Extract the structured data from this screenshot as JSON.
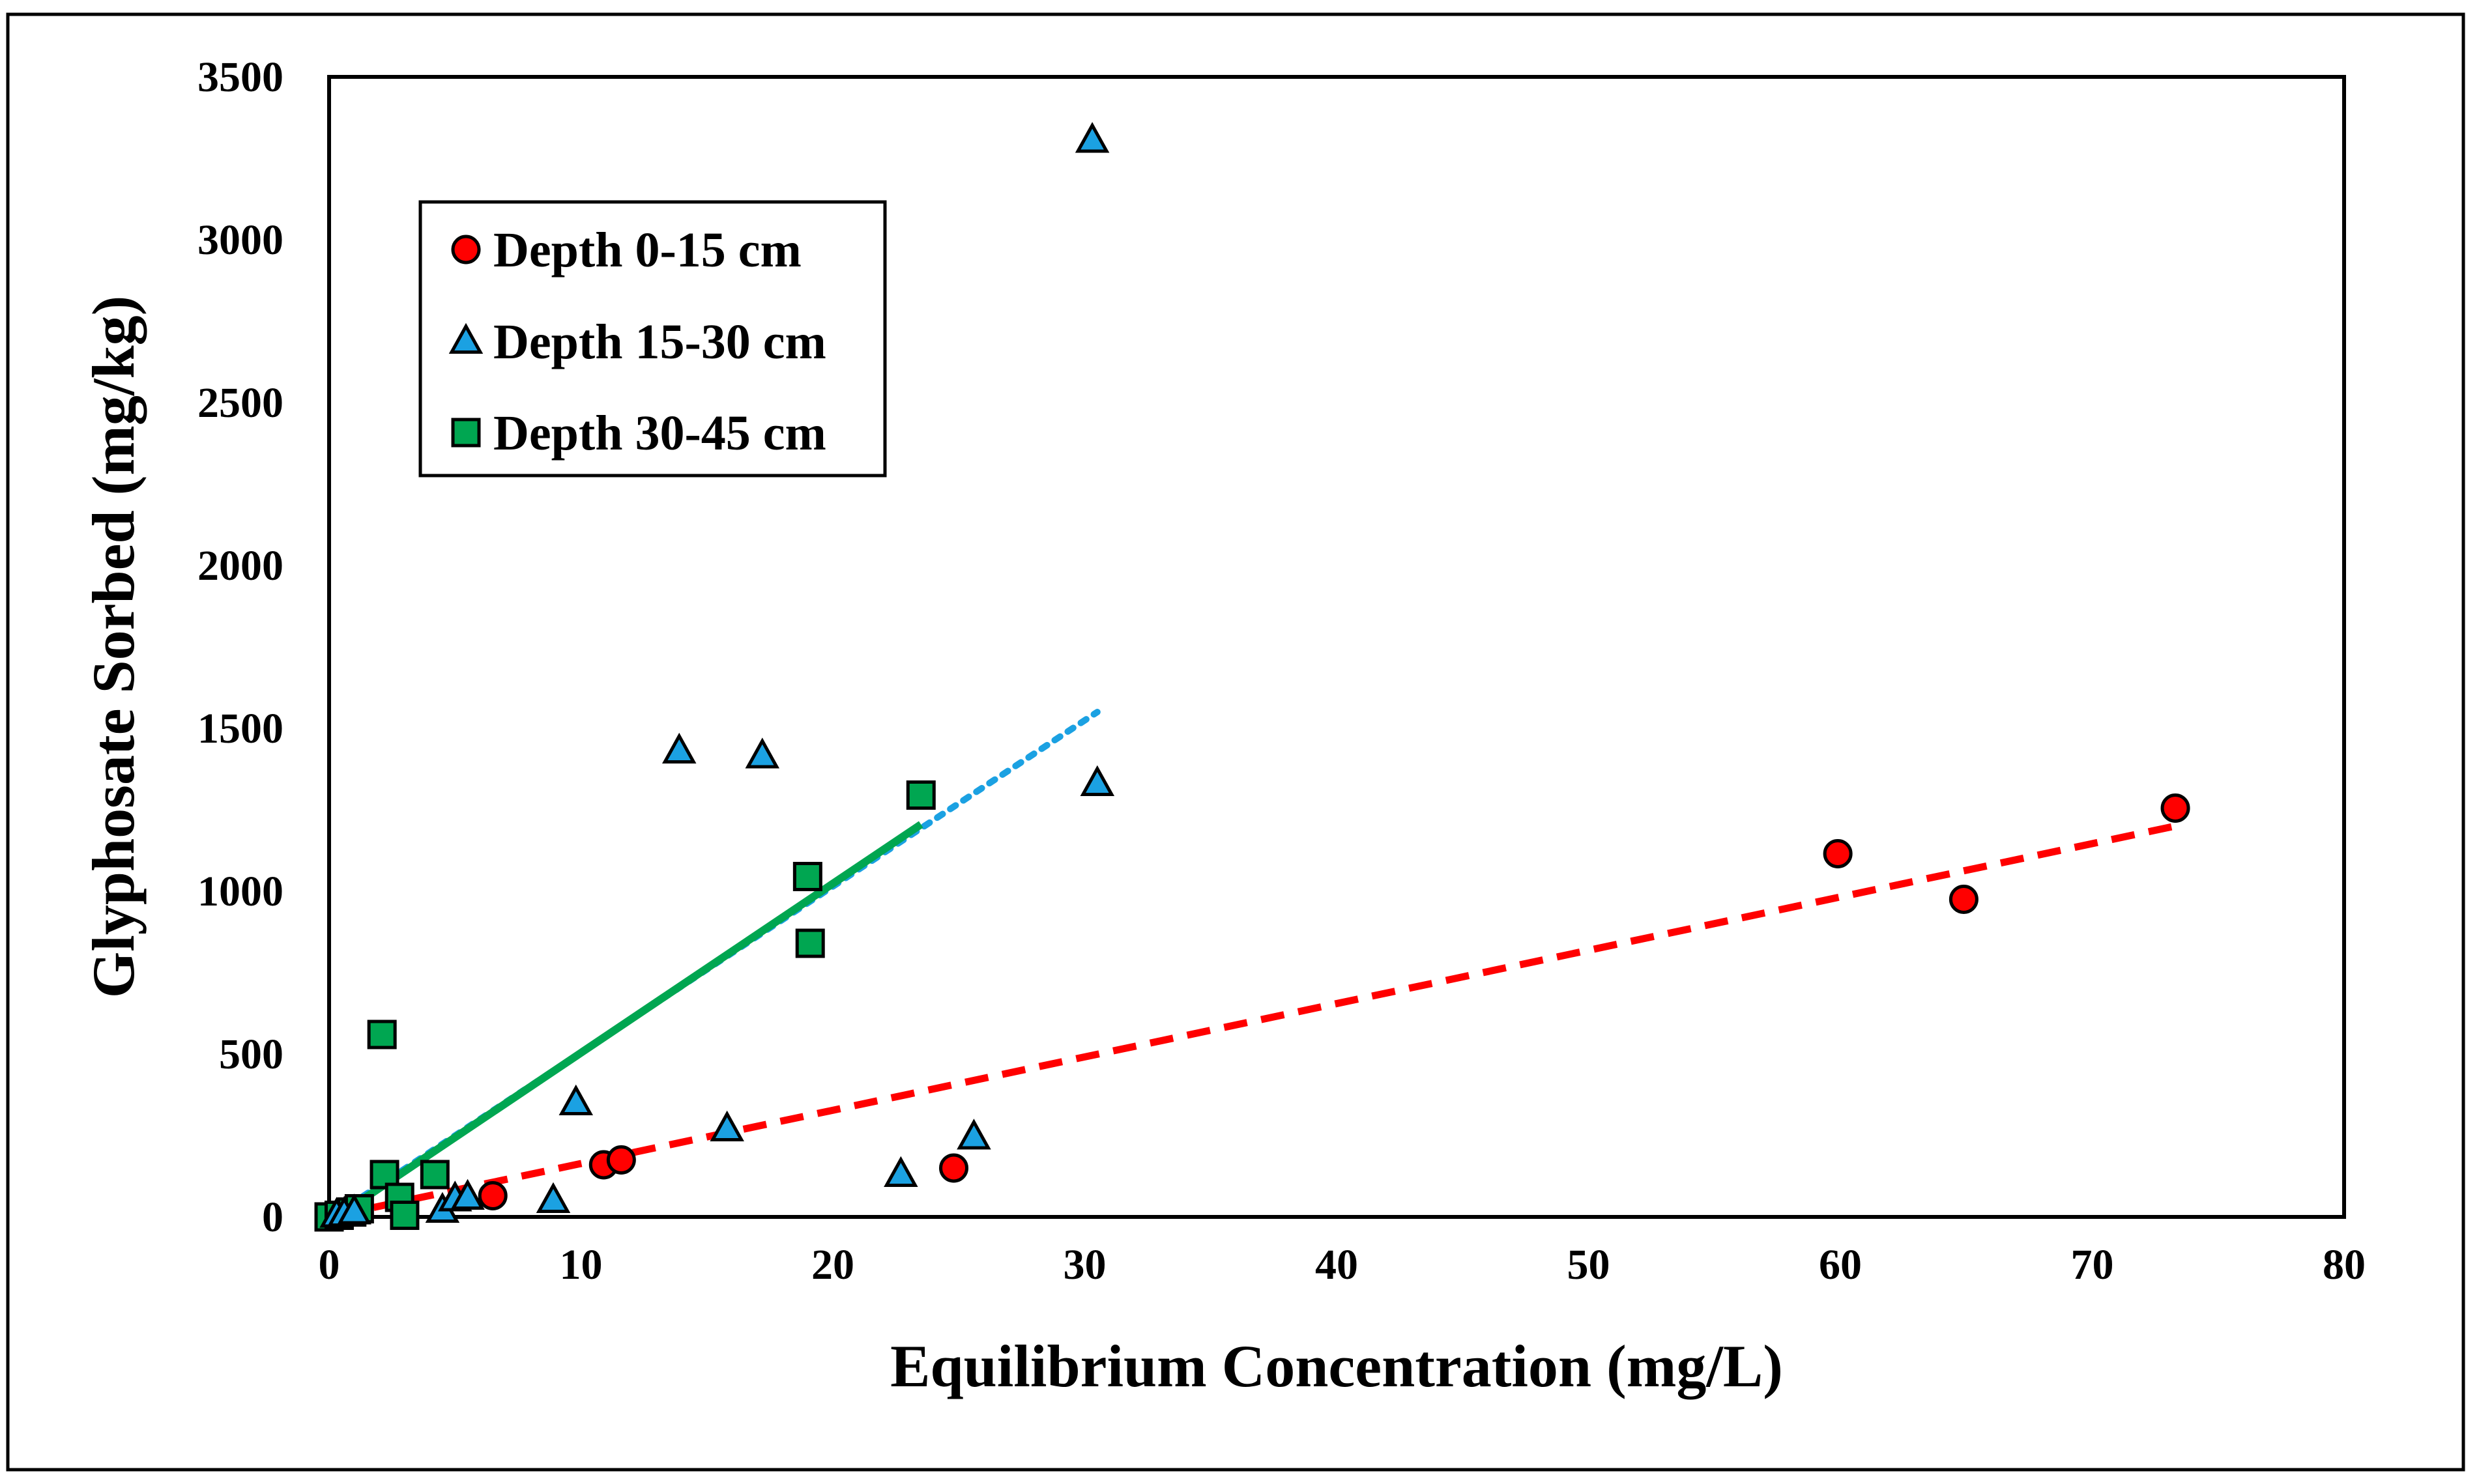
{
  "chart_data": {
    "type": "scatter",
    "title": "",
    "xlabel": "Equilibrium Concentration (mg/L)",
    "ylabel": "Glyphosate Sorbed (mg/kg)",
    "xlim": [
      0,
      80
    ],
    "ylim": [
      0,
      3500
    ],
    "xticks": [
      0,
      10,
      20,
      30,
      40,
      50,
      60,
      70,
      80
    ],
    "yticks": [
      0,
      500,
      1000,
      1500,
      2000,
      2500,
      3000,
      3500
    ],
    "grid": false,
    "legend_position": "top-left",
    "series": [
      {
        "name": "Depth 0-15 cm",
        "marker": "circle",
        "color": "#FF0000",
        "points": [
          [
            6.5,
            65
          ],
          [
            10.9,
            160
          ],
          [
            11.6,
            175
          ],
          [
            24.8,
            150
          ],
          [
            59.9,
            1115
          ],
          [
            64.9,
            975
          ],
          [
            73.3,
            1255
          ]
        ],
        "trendline": {
          "style": "dashed",
          "color": "#FF0000",
          "x": [
            0.3,
            73.3
          ],
          "y": [
            5,
            1200
          ]
        }
      },
      {
        "name": "Depth 15-30 cm",
        "marker": "triangle",
        "color": "#1BA1E2",
        "points": [
          [
            0.3,
            5
          ],
          [
            0.6,
            8
          ],
          [
            1.0,
            15
          ],
          [
            4.5,
            20
          ],
          [
            5.0,
            55
          ],
          [
            5.5,
            60
          ],
          [
            8.9,
            50
          ],
          [
            9.8,
            350
          ],
          [
            13.9,
            1430
          ],
          [
            15.8,
            270
          ],
          [
            17.2,
            1415
          ],
          [
            22.7,
            130
          ],
          [
            25.6,
            245
          ],
          [
            30.3,
            3305
          ],
          [
            30.5,
            1330
          ]
        ],
        "trendline": {
          "style": "dotted",
          "color": "#1BA1E2",
          "x": [
            0.3,
            30.5
          ],
          "y": [
            10,
            1550
          ]
        }
      },
      {
        "name": "Depth 30-45 cm",
        "marker": "square",
        "color": "#00A651",
        "points": [
          [
            0.0,
            0
          ],
          [
            0.4,
            5
          ],
          [
            0.9,
            15
          ],
          [
            1.2,
            25
          ],
          [
            2.1,
            560
          ],
          [
            2.2,
            130
          ],
          [
            2.8,
            60
          ],
          [
            3.0,
            5
          ],
          [
            4.2,
            130
          ],
          [
            19.0,
            1045
          ],
          [
            19.1,
            840
          ],
          [
            23.5,
            1295
          ]
        ],
        "trendline": {
          "style": "solid",
          "color": "#00A651",
          "x": [
            0.3,
            23.5
          ],
          "y": [
            0,
            1205
          ]
        }
      }
    ]
  }
}
